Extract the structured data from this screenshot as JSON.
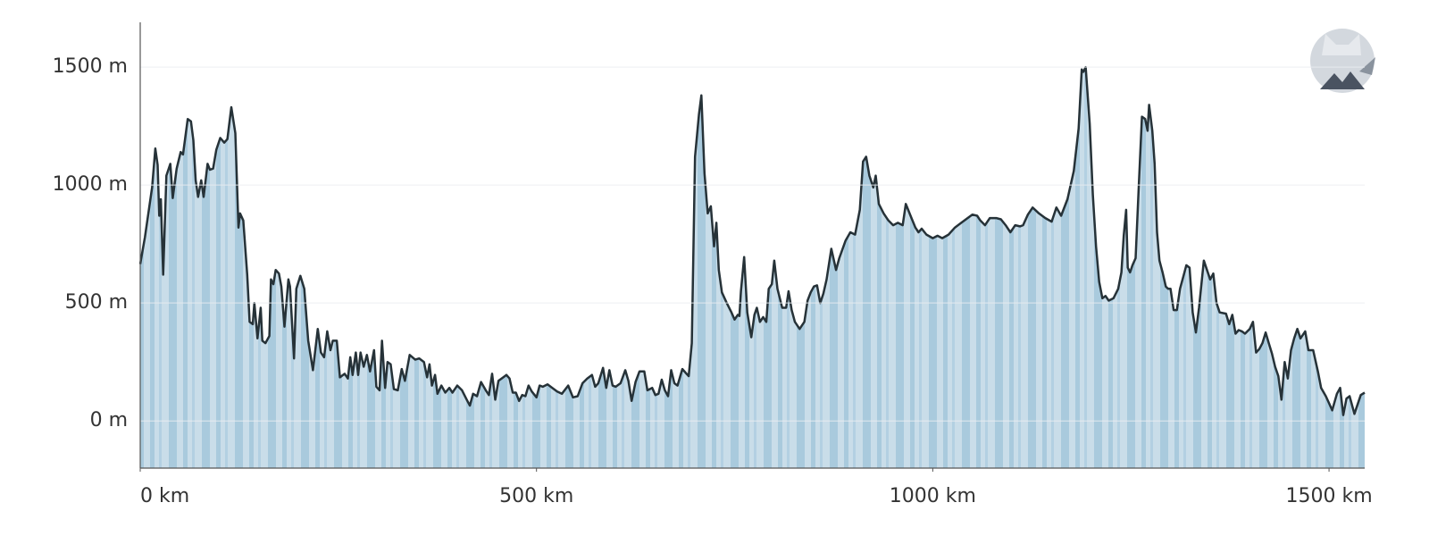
{
  "chart_data": {
    "type": "area",
    "x": [
      0,
      6,
      15,
      19,
      22,
      24,
      26,
      29,
      33,
      38,
      41,
      46,
      51,
      54,
      60,
      64,
      67,
      70,
      73,
      77,
      80,
      85,
      88,
      92,
      96,
      101,
      106,
      110,
      115,
      120,
      124,
      126,
      130,
      135,
      138,
      142,
      144,
      148,
      152,
      154,
      158,
      163,
      165,
      168,
      171,
      175,
      178,
      182,
      187,
      189,
      194,
      197,
      202,
      207,
      212,
      218,
      224,
      228,
      232,
      236,
      240,
      243,
      248,
      252,
      258,
      262,
      265,
      268,
      272,
      275,
      278,
      282,
      286,
      290,
      295,
      298,
      302,
      305,
      309,
      312,
      316,
      320,
      325,
      330,
      334,
      340,
      347,
      352,
      358,
      362,
      365,
      368,
      372,
      375,
      380,
      385,
      390,
      394,
      400,
      406,
      412,
      416,
      420,
      425,
      430,
      436,
      440,
      444,
      448,
      452,
      456,
      462,
      466,
      470,
      474,
      478,
      482,
      486,
      490,
      494,
      500,
      504,
      508,
      514,
      520,
      526,
      532,
      540,
      546,
      552,
      558,
      564,
      570,
      574,
      578,
      584,
      588,
      592,
      596,
      600,
      606,
      612,
      616,
      620,
      625,
      630,
      636,
      640,
      646,
      650,
      654,
      658,
      662,
      666,
      670,
      674,
      678,
      684,
      688,
      692,
      696,
      700,
      705,
      708,
      712,
      716,
      720,
      724,
      727,
      730,
      734,
      740,
      746,
      750,
      754,
      756,
      758,
      762,
      766,
      771,
      775,
      778,
      782,
      786,
      790,
      793,
      797,
      800,
      804,
      810,
      815,
      818,
      822,
      826,
      832,
      838,
      842,
      846,
      850,
      854,
      858,
      862,
      866,
      872,
      878,
      882,
      890,
      896,
      902,
      908,
      912,
      916,
      920,
      925,
      928,
      932,
      938,
      944,
      950,
      956,
      962,
      966,
      972,
      978,
      982,
      986,
      992,
      1000,
      1006,
      1012,
      1020,
      1028,
      1036,
      1044,
      1050,
      1056,
      1060,
      1066,
      1072,
      1080,
      1086,
      1092,
      1098,
      1104,
      1110,
      1114,
      1120,
      1126,
      1134,
      1142,
      1150,
      1156,
      1162,
      1170,
      1178,
      1184,
      1188,
      1190,
      1193,
      1198,
      1202,
      1206,
      1210,
      1214,
      1218,
      1222,
      1228,
      1234,
      1238,
      1241,
      1244,
      1246,
      1249,
      1252,
      1256,
      1260,
      1264,
      1268,
      1271,
      1273,
      1277,
      1280,
      1283,
      1286,
      1290,
      1294,
      1297,
      1300,
      1304,
      1308,
      1312,
      1316,
      1320,
      1324,
      1328,
      1332,
      1336,
      1342,
      1346,
      1350,
      1354,
      1358,
      1362,
      1370,
      1374,
      1378,
      1382,
      1386,
      1390,
      1394,
      1400,
      1404,
      1408,
      1412,
      1416,
      1420,
      1424,
      1428,
      1432,
      1436,
      1440,
      1444,
      1448,
      1452,
      1456,
      1460,
      1464,
      1470,
      1474,
      1480,
      1486,
      1490,
      1496,
      1500,
      1504,
      1510,
      1514,
      1518,
      1522,
      1526,
      1532,
      1540,
      1545
    ],
    "series": [
      {
        "color": "#263238",
        "fill": "#b9d5e5",
        "values": [
          665,
          780,
          990,
          1155,
          1085,
          870,
          940,
          620,
          1040,
          1090,
          945,
          1070,
          1140,
          1130,
          1280,
          1270,
          1190,
          1020,
          950,
          1020,
          950,
          1090,
          1065,
          1070,
          1150,
          1200,
          1180,
          1195,
          1330,
          1220,
          820,
          880,
          850,
          620,
          420,
          410,
          500,
          350,
          480,
          340,
          330,
          360,
          600,
          580,
          640,
          625,
          570,
          400,
          600,
          570,
          265,
          560,
          615,
          560,
          340,
          215,
          390,
          290,
          270,
          380,
          300,
          340,
          340,
          185,
          200,
          180,
          270,
          195,
          290,
          195,
          290,
          230,
          280,
          210,
          300,
          145,
          130,
          340,
          140,
          250,
          240,
          135,
          130,
          220,
          170,
          280,
          260,
          265,
          250,
          185,
          240,
          150,
          195,
          115,
          150,
          120,
          140,
          120,
          150,
          130,
          90,
          65,
          115,
          105,
          165,
          130,
          110,
          200,
          90,
          170,
          180,
          195,
          180,
          120,
          120,
          85,
          110,
          105,
          150,
          125,
          100,
          150,
          145,
          155,
          140,
          125,
          115,
          150,
          100,
          105,
          160,
          180,
          195,
          145,
          160,
          225,
          140,
          215,
          150,
          145,
          160,
          215,
          170,
          85,
          165,
          210,
          210,
          130,
          140,
          110,
          115,
          175,
          130,
          105,
          215,
          160,
          150,
          220,
          205,
          190,
          330,
          1120,
          1300,
          1380,
          1050,
          880,
          910,
          740,
          840,
          640,
          545,
          500,
          460,
          430,
          450,
          445,
          550,
          695,
          460,
          355,
          450,
          480,
          420,
          440,
          420,
          560,
          580,
          680,
          560,
          480,
          480,
          550,
          470,
          420,
          390,
          420,
          510,
          545,
          570,
          575,
          500,
          540,
          600,
          730,
          640,
          690,
          765,
          800,
          790,
          895,
          1100,
          1120,
          1040,
          990,
          1040,
          920,
          880,
          850,
          830,
          840,
          830,
          920,
          870,
          820,
          800,
          815,
          790,
          775,
          785,
          775,
          790,
          820,
          840,
          860,
          875,
          870,
          850,
          830,
          860,
          860,
          855,
          830,
          800,
          830,
          825,
          830,
          875,
          905,
          880,
          860,
          845,
          905,
          870,
          940,
          1060,
          1240,
          1490,
          1480,
          1500,
          1260,
          960,
          740,
          590,
          520,
          530,
          510,
          520,
          560,
          630,
          785,
          895,
          650,
          630,
          660,
          690,
          1000,
          1290,
          1280,
          1230,
          1340,
          1230,
          1090,
          800,
          680,
          630,
          570,
          560,
          560,
          470,
          470,
          560,
          610,
          660,
          650,
          460,
          375,
          480,
          680,
          640,
          600,
          625,
          500,
          460,
          455,
          410,
          450,
          370,
          385,
          380,
          370,
          390,
          420,
          290,
          305,
          330,
          375,
          330,
          285,
          230,
          190,
          90,
          250,
          180,
          300,
          350,
          390,
          350,
          380,
          300,
          300,
          210,
          140,
          105,
          75,
          45,
          115,
          140,
          25,
          95,
          105,
          30,
          110,
          120
        ]
      }
    ],
    "xlim": [
      0,
      1545
    ],
    "ylim": [
      -200,
      1690
    ],
    "xticks": [
      {
        "value": 0,
        "label": "0 km"
      },
      {
        "value": 500,
        "label": "500 km"
      },
      {
        "value": 1000,
        "label": "1000 km"
      },
      {
        "value": 1500,
        "label": "1500 km"
      }
    ],
    "yticks": [
      {
        "value": 0,
        "label": "0 m"
      },
      {
        "value": 500,
        "label": "500 m"
      },
      {
        "value": 1000,
        "label": "1000 m"
      },
      {
        "value": 1500,
        "label": "1500 m"
      }
    ],
    "grid": true
  }
}
